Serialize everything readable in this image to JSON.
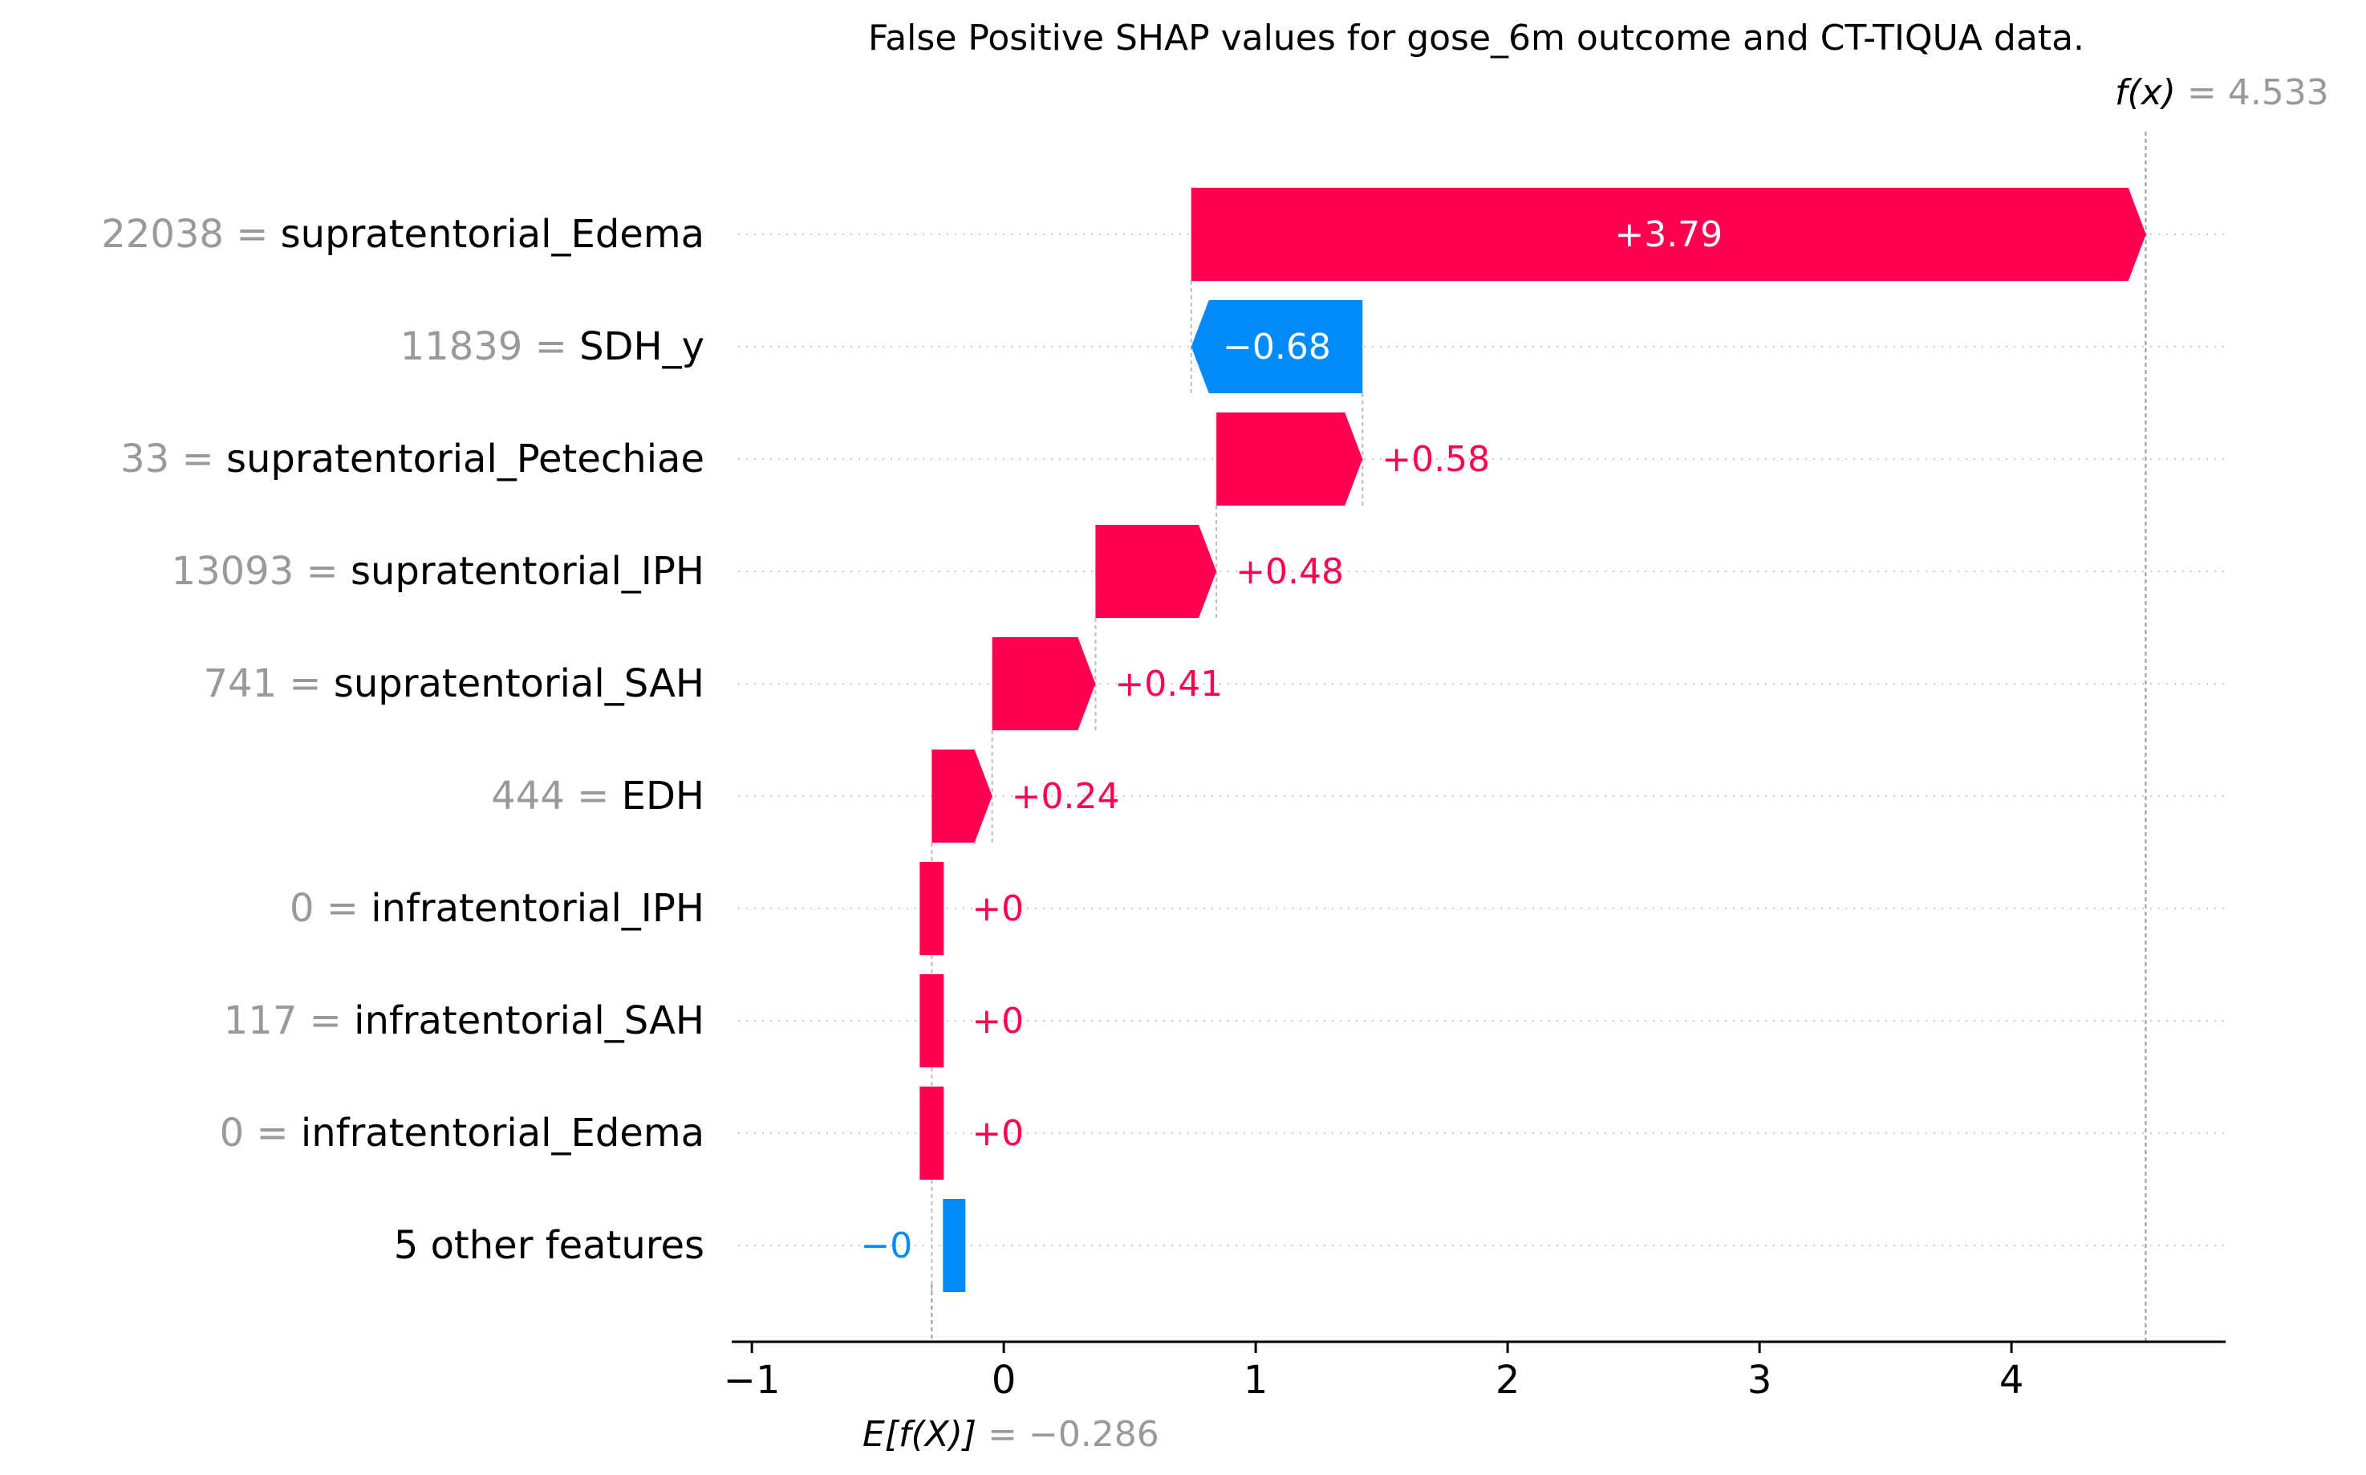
{
  "chart_data": {
    "type": "waterfall",
    "title": "False Positive SHAP values for gose_6m outcome and CT-TIQUA data.",
    "base_value": -0.286,
    "base_label_func": "E[f(X)]",
    "base_label_text": "= −0.286",
    "output_value": 4.533,
    "output_label_func": "f(x)",
    "output_label_text": "= 4.533",
    "xlim": [
      -1.08,
      4.85
    ],
    "xticks": [
      -1,
      0,
      1,
      2,
      3,
      4
    ],
    "xtick_labels": [
      "−1",
      "0",
      "1",
      "2",
      "3",
      "4"
    ],
    "features": [
      {
        "value": "22038",
        "name": "supratentorial_Edema",
        "shap": 3.79,
        "label": "+3.79"
      },
      {
        "value": "11839",
        "name": "SDH_y",
        "shap": -0.68,
        "label": "−0.68"
      },
      {
        "value": "33",
        "name": "supratentorial_Petechiae",
        "shap": 0.58,
        "label": "+0.58"
      },
      {
        "value": "13093",
        "name": "supratentorial_IPH",
        "shap": 0.48,
        "label": "+0.48"
      },
      {
        "value": "741",
        "name": "supratentorial_SAH",
        "shap": 0.41,
        "label": "+0.41"
      },
      {
        "value": "444",
        "name": "EDH",
        "shap": 0.24,
        "label": "+0.24"
      },
      {
        "value": "0",
        "name": "infratentorial_IPH",
        "shap": 0.0,
        "label": "+0"
      },
      {
        "value": "117",
        "name": "infratentorial_SAH",
        "shap": 0.0,
        "label": "+0"
      },
      {
        "value": "0",
        "name": "infratentorial_Edema",
        "shap": 0.0,
        "label": "+0"
      },
      {
        "value": "",
        "name": "5 other features",
        "shap": -0.0,
        "label": "−0"
      }
    ],
    "colors": {
      "positive": "#ff0051",
      "negative": "#008bfb",
      "feature_value": "#999999",
      "feature_name": "#000000",
      "grid": "#cccccc"
    }
  }
}
